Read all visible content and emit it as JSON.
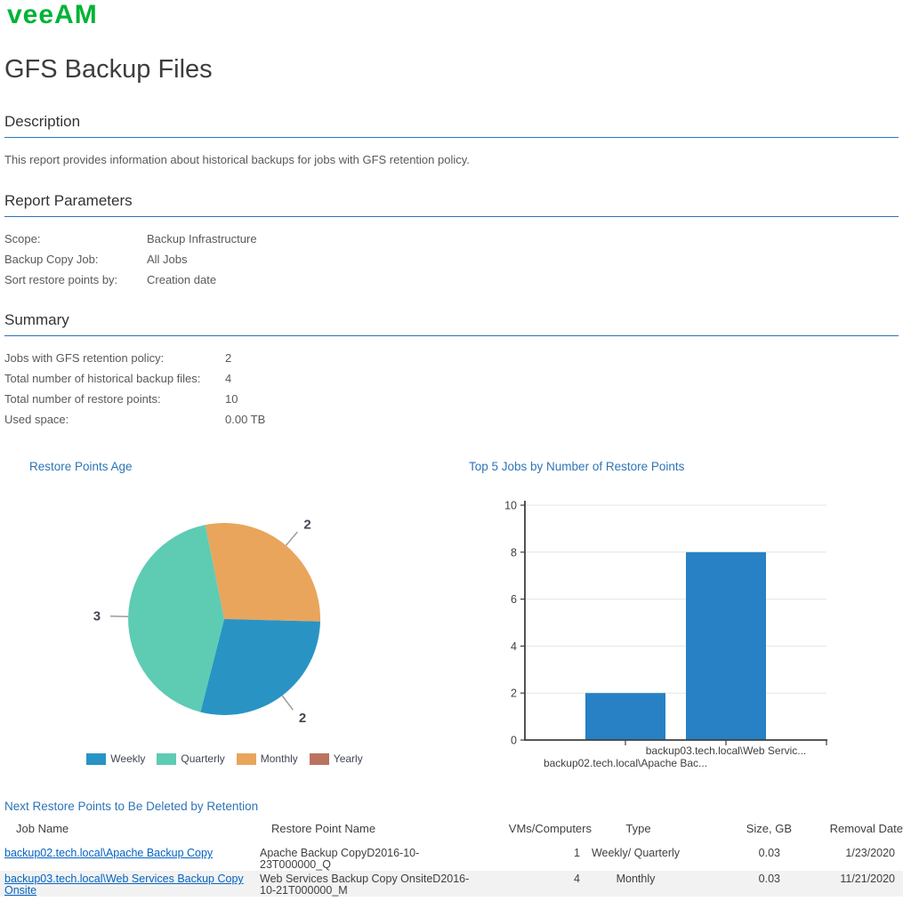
{
  "logo": {
    "text": "veeAM",
    "color": "#00b336"
  },
  "page": {
    "title": "GFS Backup Files"
  },
  "sections": {
    "description": {
      "heading": "Description",
      "text": "This report provides information about historical backups for jobs with GFS retention policy."
    },
    "parameters": {
      "heading": "Report Parameters",
      "rows": [
        {
          "label": "Scope:",
          "value": "Backup Infrastructure"
        },
        {
          "label": "Backup Copy Job:",
          "value": "All Jobs"
        },
        {
          "label": "Sort restore points by:",
          "value": "Creation date"
        }
      ]
    },
    "summary": {
      "heading": "Summary",
      "rows": [
        {
          "label": "Jobs with GFS retention policy:",
          "value": "2"
        },
        {
          "label": "Total number of historical backup files:",
          "value": "4"
        },
        {
          "label": "Total number of restore points:",
          "value": "10"
        },
        {
          "label": "Used space:",
          "value": "0.00 TB"
        }
      ]
    }
  },
  "chart_data": [
    {
      "type": "pie",
      "title": "Restore Points Age",
      "start_angle_deg": -11.4,
      "slices": [
        {
          "label": "Monthly",
          "value": 2,
          "color": "#e9a55c"
        },
        {
          "label": "Weekly",
          "value": 2,
          "color": "#2994c4"
        },
        {
          "label": "Quarterly",
          "value": 3,
          "color": "#5ecbb3"
        },
        {
          "label": "Yearly",
          "value": 0,
          "color": "#b97360"
        }
      ],
      "legend": [
        {
          "label": "Weekly",
          "color": "#2994c4"
        },
        {
          "label": "Quarterly",
          "color": "#5ecbb3"
        },
        {
          "label": "Monthly",
          "color": "#e9a55c"
        },
        {
          "label": "Yearly",
          "color": "#b97360"
        }
      ],
      "legend_position": "bottom"
    },
    {
      "type": "bar",
      "title": "Top 5 Jobs by Number of Restore Points",
      "categories": [
        "backup02.tech.local\\Apache Bac...",
        "backup03.tech.local\\Web Servic..."
      ],
      "values": [
        2,
        8
      ],
      "ylim": [
        0,
        10
      ],
      "ytick_step": 2,
      "bar_color": "#2781c4",
      "grid": true
    }
  ],
  "table": {
    "heading": "Next Restore Points to Be Deleted by Retention",
    "columns": [
      "Job Name",
      "Restore Point Name",
      "VMs/Computers",
      "Type",
      "Size, GB",
      "Removal Date"
    ],
    "rows": [
      {
        "job_name": "backup02.tech.local\\Apache Backup Copy",
        "restore_point": "Apache Backup CopyD2016-10-23T000000_Q",
        "vms": "1",
        "type": "Weekly/ Quarterly",
        "size_gb": "0.03",
        "removal_date": "1/23/2020"
      },
      {
        "job_name": "backup03.tech.local\\Web Services Backup Copy Onsite",
        "restore_point": "Web Services Backup Copy OnsiteD2016-10-21T000000_M",
        "vms": "4",
        "type": "Monthly",
        "size_gb": "0.03",
        "removal_date": "11/21/2020"
      }
    ]
  },
  "colors": {
    "accent_blue": "#2e74b5",
    "link_blue": "#0563c1",
    "veeam_green": "#00b336",
    "axis_text": "#404040",
    "gridline": "#e6e6e6",
    "alt_row_bg": "#f2f2f2"
  }
}
